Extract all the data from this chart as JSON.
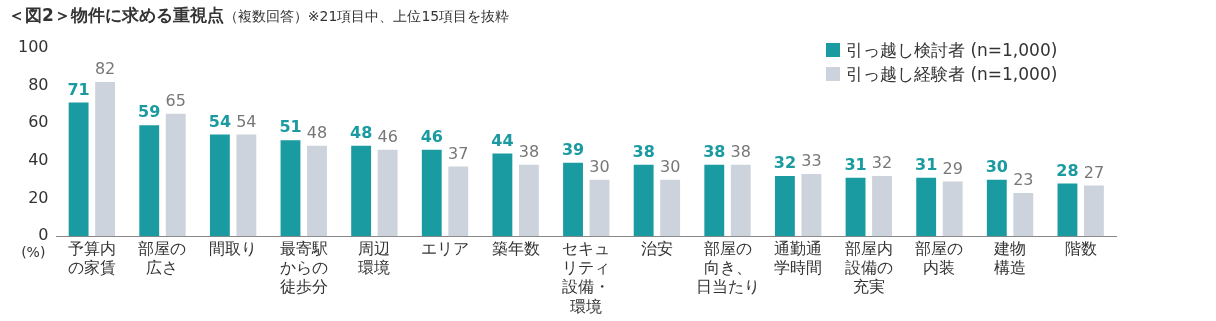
{
  "chart_data": {
    "type": "bar",
    "title": "＜図2＞物件に求める重視点",
    "subtitle": "（複数回答）※21項目中、上位15項目を抜粋",
    "ylabel": "(%)",
    "categories": [
      "予算内の家賃",
      "部屋の広さ",
      "間取り",
      "最寄駅からの徒歩分",
      "周辺環境",
      "エリア",
      "築年数",
      "セキュリティ設備・環境",
      "治安",
      "部屋の向き、日当たり",
      "通勤通学時間",
      "部屋内設備の充実",
      "部屋の内装",
      "建物構造",
      "階数"
    ],
    "series": [
      {
        "name": "引っ越し検討者 (n=1,000)",
        "color": "#1a9ba1",
        "values": [
          71,
          59,
          54,
          51,
          48,
          46,
          44,
          39,
          38,
          38,
          32,
          31,
          31,
          30,
          28
        ]
      },
      {
        "name": "引っ越し経験者 (n=1,000)",
        "color": "#ccd3dc",
        "values": [
          82,
          65,
          54,
          48,
          46,
          37,
          38,
          30,
          30,
          38,
          33,
          32,
          29,
          23,
          27
        ]
      }
    ],
    "ylim": [
      0,
      100
    ],
    "yticks": [
      0,
      20,
      40,
      60,
      80,
      100
    ],
    "grid": false,
    "legend": "top right",
    "data_labels": true
  }
}
